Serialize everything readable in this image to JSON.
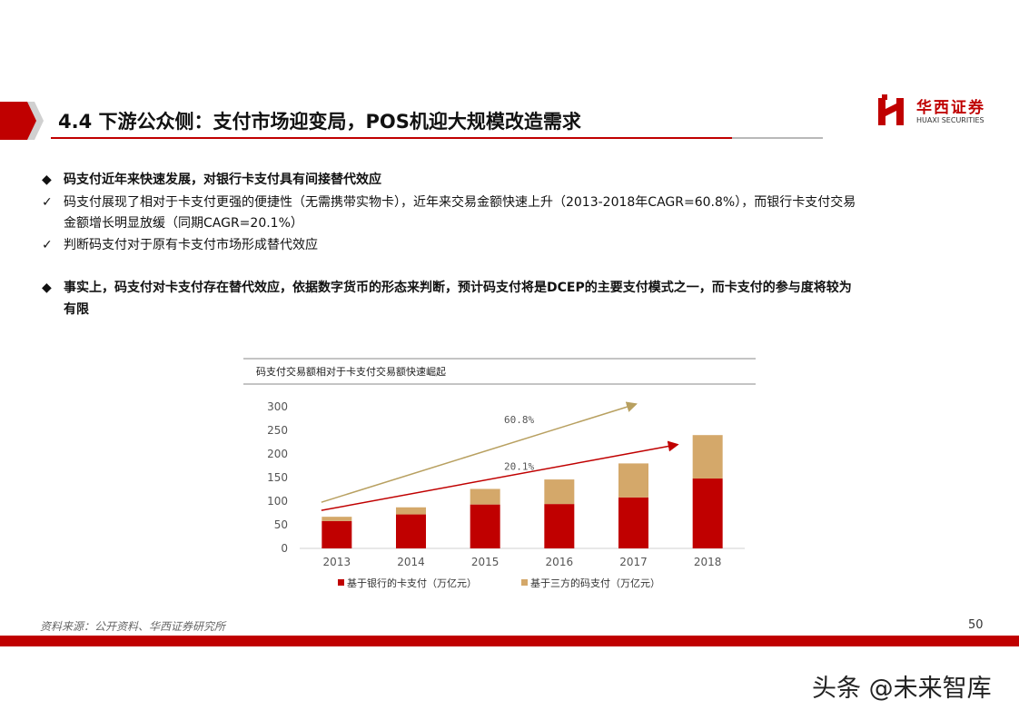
{
  "header": {
    "title": "4.4 下游公众侧：支付市场迎变局，POS机迎大规模改造需求",
    "logo_cn": "华西证券",
    "logo_en": "HUAXI SECURITIES"
  },
  "content": {
    "bullet1": {
      "marker": "◆",
      "text": "码支付近年来快速发展，对银行卡支付具有间接替代效应"
    },
    "check1": {
      "marker": "✓",
      "line1": "码支付展现了相对于卡支付更强的便捷性（无需携带实物卡），近年来交易金额快速上升（2013-2018年CAGR=60.8%），而银行卡支付交易",
      "line2": "金额增长明显放缓（同期CAGR=20.1%）"
    },
    "check2": {
      "marker": "✓",
      "text": "判断码支付对于原有卡支付市场形成替代效应"
    },
    "bullet2": {
      "marker": "◆",
      "line1": "事实上，码支付对卡支付存在替代效应，依据数字货币的形态来判断，预计码支付将是DCEP的主要支付模式之一，而卡支付的参与度将较为",
      "line2": "有限"
    }
  },
  "chart_data": {
    "type": "bar",
    "stacked": true,
    "title": "码支付交易额相对于卡支付交易额快速崛起",
    "categories": [
      "2013",
      "2014",
      "2015",
      "2016",
      "2017",
      "2018"
    ],
    "series": [
      {
        "name": "基于银行的卡支付（万亿元）",
        "color": "#c00000",
        "values": [
          58,
          72,
          93,
          94,
          108,
          148
        ]
      },
      {
        "name": "基于三方的码支付（万亿元）",
        "color": "#d4a86a",
        "values": [
          9,
          15,
          33,
          52,
          72,
          92
        ]
      }
    ],
    "ylim": [
      0,
      300
    ],
    "yticks": [
      0,
      50,
      100,
      150,
      200,
      250,
      300
    ],
    "grid": false,
    "legend": "bottom",
    "annotations": [
      {
        "text": "60.8%",
        "color": "#b8a060"
      },
      {
        "text": "20.1%",
        "color": "#c00000"
      }
    ]
  },
  "footer": {
    "source": "资料来源：公开资料、华西证券研究所",
    "page": "50"
  },
  "watermark": "头条 @未来智库"
}
